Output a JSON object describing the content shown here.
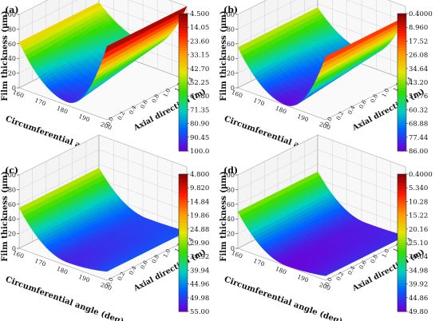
{
  "chart_data": [
    {
      "type": "surface3d",
      "panel_label": "(a)",
      "zlabel": "Film thickness (μm)",
      "xlabel": "Circumferential angle (deg)",
      "ylabel": "Axial direction (m)",
      "z_ticks": [
        "0",
        "20",
        "40",
        "60",
        "80",
        "100"
      ],
      "x_ticks": [
        "160",
        "170",
        "180",
        "190",
        "200"
      ],
      "y_ticks": [
        "0.0",
        "0.2",
        "0.4",
        "0.6",
        "0.8",
        "1.0",
        "1.2",
        "1.4"
      ],
      "zlim": [
        0,
        100
      ],
      "colorbar_ticks": [
        "4.500",
        "14.05",
        "23.60",
        "33.15",
        "42.70",
        "52.25",
        "61.80",
        "71.35",
        "80.90",
        "90.45",
        "100.0"
      ],
      "surface": {
        "z_min_at_min_axial": 4.5,
        "z_min_at_max_axial": 30,
        "z_left_edge": 62,
        "z_right_edge": 100
      }
    },
    {
      "type": "surface3d",
      "panel_label": "(b)",
      "zlabel": "Film thickness (μm)",
      "xlabel": "Circumferential angle (deg)",
      "ylabel": "Axial direction (m)",
      "z_ticks": [
        "0",
        "20",
        "40",
        "60",
        "80",
        "100"
      ],
      "x_ticks": [
        "160",
        "170",
        "180",
        "190",
        "200"
      ],
      "y_ticks": [
        "0.0",
        "0.2",
        "0.4",
        "0.6",
        "0.8",
        "1.0",
        "1.2",
        "1.4"
      ],
      "zlim": [
        0,
        100
      ],
      "colorbar_ticks": [
        "0.4000",
        "8.960",
        "17.52",
        "26.08",
        "34.64",
        "43.20",
        "51.76",
        "60.32",
        "68.88",
        "77.44",
        "86.00"
      ],
      "surface": {
        "z_min_at_min_axial": 0.4,
        "z_min_at_max_axial": 18,
        "z_left_edge": 55,
        "z_right_edge": 86
      }
    },
    {
      "type": "surface3d",
      "panel_label": "(c)",
      "zlabel": "Film thickness (μm)",
      "xlabel": "Circumferential angle (deg)",
      "ylabel": "Axial direction (m)",
      "z_ticks": [
        "0",
        "20",
        "40",
        "60",
        "80",
        "100"
      ],
      "x_ticks": [
        "160",
        "170",
        "180",
        "190",
        "200"
      ],
      "y_ticks": [
        "0.0",
        "0.2",
        "0.4",
        "0.6",
        "0.8",
        "1.0",
        "1.2",
        "1.4"
      ],
      "zlim": [
        0,
        100
      ],
      "colorbar_ticks": [
        "4.800",
        "9.820",
        "14.84",
        "19.86",
        "24.88",
        "29.90",
        "34.92",
        "39.94",
        "44.96",
        "49.98",
        "55.00"
      ],
      "surface": {
        "z_min_at_min_axial": 4.8,
        "z_min_at_max_axial": 10,
        "z_left_edge": 55,
        "z_right_edge": 12
      }
    },
    {
      "type": "surface3d",
      "panel_label": "(d)",
      "zlabel": "Film thickness (μm)",
      "xlabel": "Circumferential angle (deg)",
      "ylabel": "Axial direction (m)",
      "z_ticks": [
        "0",
        "20",
        "40",
        "60",
        "80",
        "100"
      ],
      "x_ticks": [
        "160",
        "170",
        "180",
        "190",
        "200"
      ],
      "y_ticks": [
        "0.0",
        "0.2",
        "0.4",
        "0.6",
        "0.8",
        "1.0",
        "1.2",
        "1.4"
      ],
      "zlim": [
        0,
        100
      ],
      "colorbar_ticks": [
        "0.4000",
        "5.340",
        "10.28",
        "15.22",
        "20.16",
        "25.10",
        "30.04",
        "34.98",
        "39.92",
        "44.86",
        "49.80"
      ],
      "surface": {
        "z_min_at_min_axial": 0.4,
        "z_min_at_max_axial": 4,
        "z_left_edge": 49.8,
        "z_right_edge": 6
      }
    }
  ],
  "colormap": [
    "#8a0000",
    "#ff1a00",
    "#ff9900",
    "#e6e600",
    "#33dd00",
    "#00d0c0",
    "#0060ff",
    "#6a00d8"
  ]
}
